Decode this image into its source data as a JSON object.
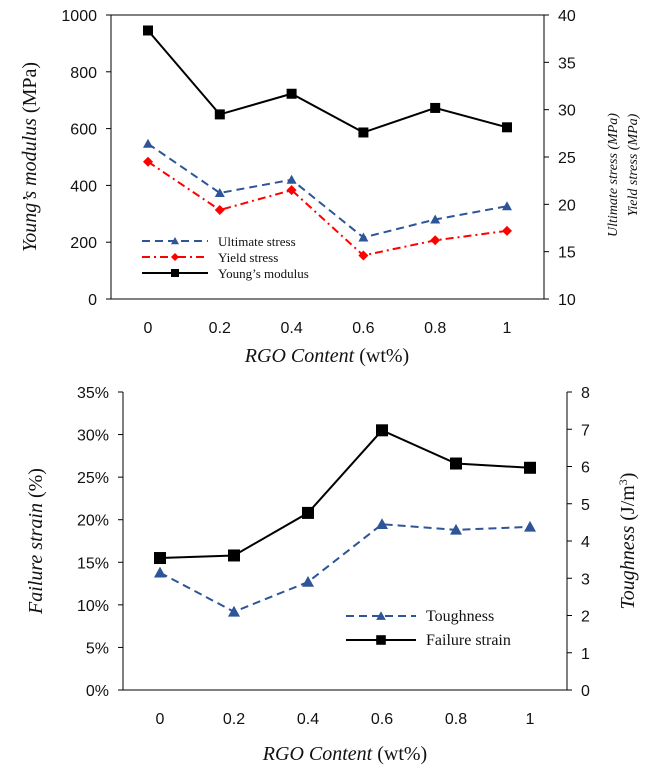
{
  "chart_data": [
    {
      "type": "line",
      "categories": [
        "0",
        "0.2",
        "0.4",
        "0.6",
        "0.8",
        "1"
      ],
      "x": [
        0,
        0.2,
        0.4,
        0.6,
        0.8,
        1
      ],
      "xlabel_italic": "RGO Content",
      "xlabel_unit": " (wt%)",
      "ylabel_italic": "Young’s modulus",
      "ylabel_unit": " (MPa)",
      "y2label_1": "Ultimate stress (MPa)",
      "y2label_2": "Yield stress (MPa)",
      "ylim": [
        0,
        1100
      ],
      "yticks": [
        "0",
        "200",
        "400",
        "600",
        "800",
        "1000"
      ],
      "y2lim": [
        10,
        40
      ],
      "y2ticks": [
        "10",
        "15",
        "20",
        "25",
        "30",
        "35",
        "40"
      ],
      "legend_position": "lower-left",
      "series": [
        {
          "name": "Ultimate stress",
          "axis": "right",
          "color": "#2E5597",
          "marker": "triangle",
          "dash": "dashed",
          "values": [
            26.4,
            21.2,
            22.6,
            16.5,
            18.4,
            19.8
          ]
        },
        {
          "name": "Yield stress",
          "axis": "right",
          "color": "#FF0000",
          "marker": "diamond",
          "dash": "dash-dot",
          "values": [
            24.5,
            19.4,
            21.5,
            14.6,
            16.2,
            17.2
          ]
        },
        {
          "name": "Young’s modulus",
          "axis": "left",
          "color": "#000000",
          "marker": "square",
          "dash": "solid",
          "values": [
            1040,
            715,
            795,
            645,
            740,
            665
          ]
        }
      ]
    },
    {
      "type": "line",
      "categories": [
        "0",
        "0.2",
        "0.4",
        "0.6",
        "0.8",
        "1"
      ],
      "x": [
        0,
        0.2,
        0.4,
        0.6,
        0.8,
        1
      ],
      "xlabel_italic": "RGO Content",
      "xlabel_unit": " (wt%)",
      "ylabel_italic": "Failure strain",
      "ylabel_unit": " (%)",
      "y2label_italic": "Toughness",
      "y2label_unit": " (J/m",
      "y2label_sup": "3",
      "y2label_close": ")",
      "ylim": [
        0,
        35
      ],
      "yticks": [
        "0%",
        "5%",
        "10%",
        "15%",
        "20%",
        "25%",
        "30%",
        "35%"
      ],
      "y2lim": [
        0,
        8
      ],
      "y2ticks": [
        "0",
        "1",
        "2",
        "3",
        "4",
        "5",
        "6",
        "7",
        "8"
      ],
      "legend_position": "lower-right",
      "series": [
        {
          "name": "Toughness",
          "axis": "right",
          "color": "#2E5597",
          "marker": "triangle",
          "dash": "dashed",
          "values": [
            3.15,
            2.1,
            2.9,
            4.45,
            4.3,
            4.38
          ]
        },
        {
          "name": "Failure strain",
          "axis": "left",
          "color": "#000000",
          "marker": "square",
          "dash": "solid",
          "values": [
            15.5,
            15.8,
            20.8,
            30.5,
            26.6,
            26.1
          ]
        }
      ]
    }
  ]
}
